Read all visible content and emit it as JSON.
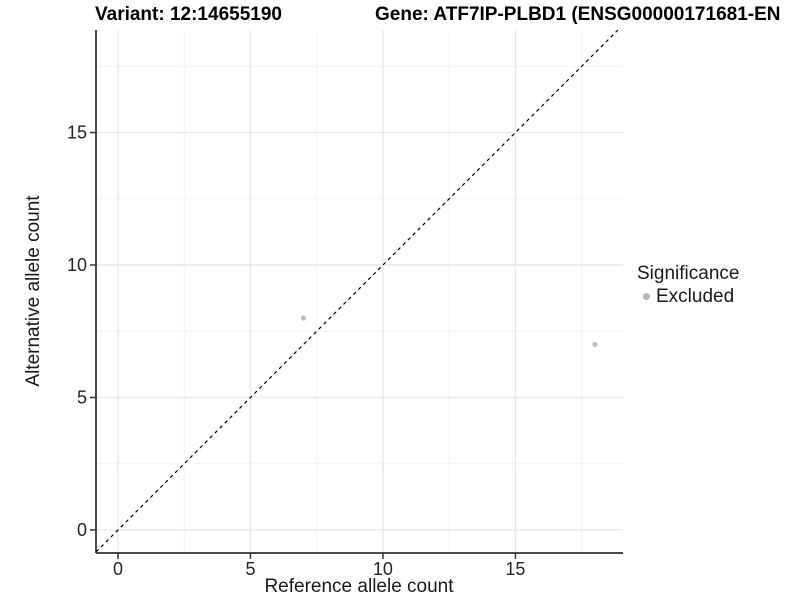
{
  "titles": {
    "variant": "Variant: 12:14655190",
    "gene": "Gene: ATF7IP-PLBD1 (ENSG00000171681-EN"
  },
  "legend": {
    "title": "Significance",
    "items": [
      {
        "label": "Excluded",
        "color": "#b4b4b4"
      }
    ]
  },
  "colors": {
    "background": "#ffffff",
    "grid_major": "#e9e9e9",
    "grid_minor": "#f3f3f3",
    "axis_line": "#333333",
    "tick_label": "#262626",
    "diagonal_line": "#000000",
    "point": "#bdbdbd"
  },
  "chart_data": {
    "type": "scatter",
    "title": "Variant: 12:14655190 — Gene: ATF7IP-PLBD1 (ENSG00000171681-EN",
    "xlabel": "Reference allele count",
    "ylabel": "Alternative allele count",
    "series": [
      {
        "name": "Excluded",
        "color": "#bdbdbd",
        "points": [
          [
            7,
            8
          ],
          [
            18,
            7
          ]
        ]
      }
    ],
    "diagonal": {
      "type": "identity",
      "style": "dashed",
      "color": "#000000"
    },
    "xlim": [
      -0.83,
      19.06
    ],
    "ylim": [
      -0.87,
      18.87
    ],
    "x_ticks": [
      0,
      5,
      10,
      15
    ],
    "y_ticks": [
      0,
      5,
      10,
      15
    ],
    "x_minor_ticks": [
      2.5,
      7.5,
      12.5,
      17.5
    ],
    "y_minor_ticks": [
      2.5,
      7.5,
      12.5,
      17.5
    ],
    "grid": true,
    "legend_position": "right",
    "legend_title": "Significance"
  }
}
